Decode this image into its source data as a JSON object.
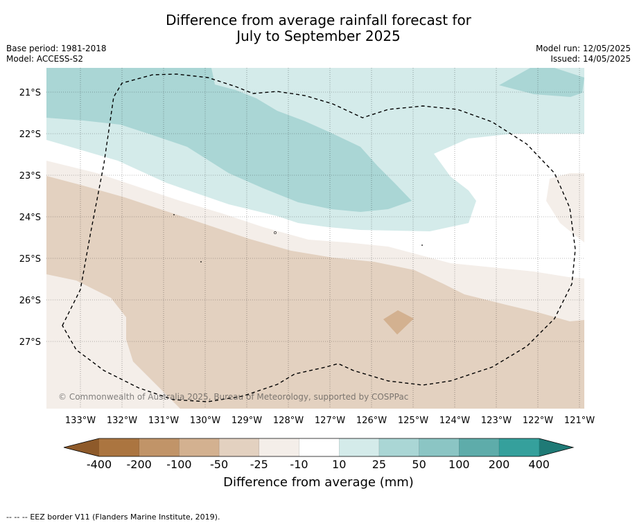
{
  "title": {
    "line1": "Difference from average rainfall forecast for",
    "line2": "July to September 2025"
  },
  "meta": {
    "base_period": "Base period: 1981-2018",
    "model": "Model: ACCESS-S2",
    "model_run": "Model run: 12/05/2025",
    "issued": "Issued: 14/05/2025"
  },
  "map": {
    "lat_labels": [
      "21°S",
      "22°S",
      "23°S",
      "24°S",
      "25°S",
      "26°S",
      "27°S"
    ],
    "lon_labels": [
      "133°W",
      "132°W",
      "131°W",
      "130°W",
      "129°W",
      "128°W",
      "127°W",
      "126°W",
      "125°W",
      "124°W",
      "123°W",
      "122°W",
      "121°W"
    ],
    "copyright": "© Commonwealth of Australia 2025, Bureau of Meteorology, supported by COSPPac"
  },
  "colorbar": {
    "title": "Difference from average (mm)",
    "labels": [
      "-400",
      "-200",
      "-100",
      "-50",
      "-25",
      "-10",
      "10",
      "25",
      "50",
      "100",
      "200",
      "400"
    ],
    "colors": [
      "#ab7540",
      "#c19468",
      "#d3b190",
      "#e3d1c0",
      "#f4eee9",
      "#ffffff",
      "#d4ebea",
      "#aad6d5",
      "#8bc5c4",
      "#5eacaa",
      "#35a09c"
    ],
    "under_color": "#8e5a2a",
    "over_color": "#1f7a76"
  },
  "legend": {
    "dash_symbol": "--  --  --",
    "eez_text": "EEZ border V11 (Flanders Marine Institute, 2019)."
  }
}
